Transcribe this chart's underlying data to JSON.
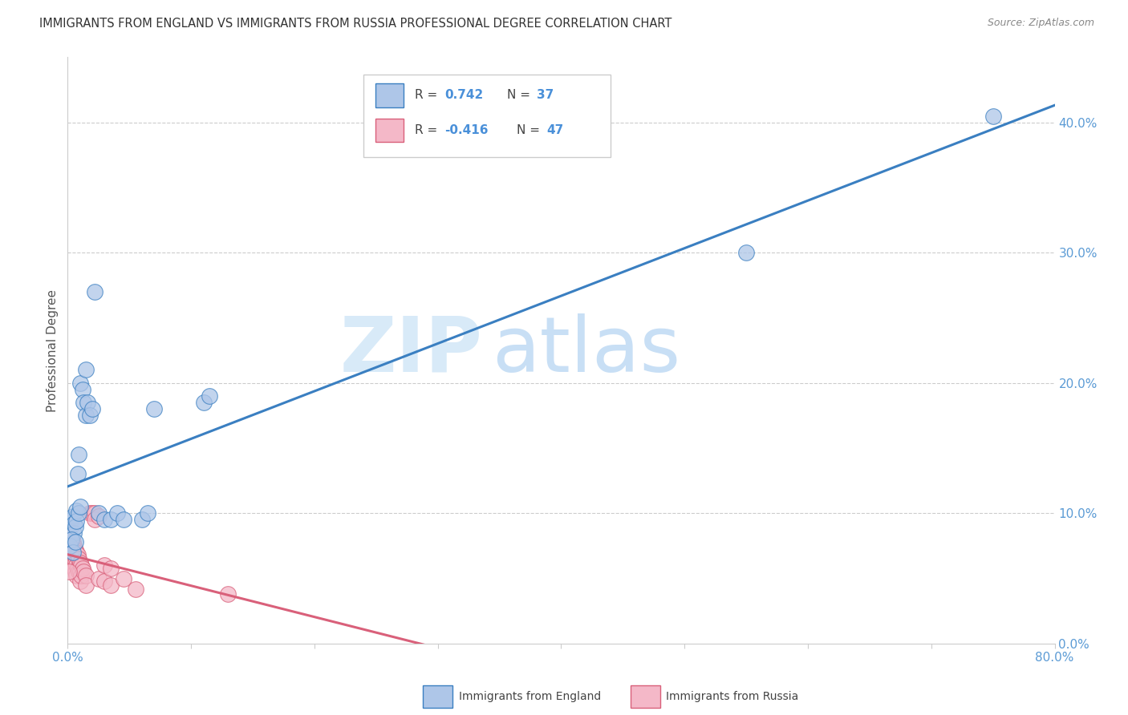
{
  "title": "IMMIGRANTS FROM ENGLAND VS IMMIGRANTS FROM RUSSIA PROFESSIONAL DEGREE CORRELATION CHART",
  "source": "Source: ZipAtlas.com",
  "ylabel": "Professional Degree",
  "legend_england": "Immigrants from England",
  "legend_russia": "Immigrants from Russia",
  "R_england": 0.742,
  "N_england": 37,
  "R_russia": -0.416,
  "N_russia": 47,
  "england_color": "#aec6e8",
  "russia_color": "#f4b8c8",
  "england_line_color": "#3a7fc1",
  "russia_line_color": "#d9607a",
  "watermark_zip": "ZIP",
  "watermark_atlas": "atlas",
  "xlim": [
    0.0,
    0.8
  ],
  "ylim": [
    0.0,
    0.45
  ],
  "england_points": [
    [
      0.002,
      0.083
    ],
    [
      0.003,
      0.095
    ],
    [
      0.004,
      0.098
    ],
    [
      0.005,
      0.092
    ],
    [
      0.005,
      0.085
    ],
    [
      0.006,
      0.09
    ],
    [
      0.007,
      0.102
    ],
    [
      0.007,
      0.094
    ],
    [
      0.008,
      0.13
    ],
    [
      0.009,
      0.145
    ],
    [
      0.009,
      0.1
    ],
    [
      0.01,
      0.105
    ],
    [
      0.01,
      0.2
    ],
    [
      0.012,
      0.195
    ],
    [
      0.013,
      0.185
    ],
    [
      0.015,
      0.175
    ],
    [
      0.015,
      0.21
    ],
    [
      0.016,
      0.185
    ],
    [
      0.018,
      0.175
    ],
    [
      0.02,
      0.18
    ],
    [
      0.022,
      0.27
    ],
    [
      0.025,
      0.1
    ],
    [
      0.03,
      0.095
    ],
    [
      0.035,
      0.095
    ],
    [
      0.04,
      0.1
    ],
    [
      0.045,
      0.095
    ],
    [
      0.06,
      0.095
    ],
    [
      0.065,
      0.1
    ],
    [
      0.07,
      0.18
    ],
    [
      0.11,
      0.185
    ],
    [
      0.115,
      0.19
    ],
    [
      0.55,
      0.3
    ],
    [
      0.75,
      0.405
    ],
    [
      0.002,
      0.075
    ],
    [
      0.003,
      0.08
    ],
    [
      0.004,
      0.07
    ],
    [
      0.006,
      0.078
    ]
  ],
  "russia_points": [
    [
      0.001,
      0.082
    ],
    [
      0.002,
      0.078
    ],
    [
      0.002,
      0.072
    ],
    [
      0.002,
      0.068
    ],
    [
      0.003,
      0.08
    ],
    [
      0.003,
      0.075
    ],
    [
      0.003,
      0.065
    ],
    [
      0.003,
      0.06
    ],
    [
      0.004,
      0.078
    ],
    [
      0.004,
      0.072
    ],
    [
      0.004,
      0.065
    ],
    [
      0.005,
      0.075
    ],
    [
      0.005,
      0.068
    ],
    [
      0.005,
      0.058
    ],
    [
      0.006,
      0.072
    ],
    [
      0.006,
      0.062
    ],
    [
      0.006,
      0.055
    ],
    [
      0.007,
      0.07
    ],
    [
      0.007,
      0.06
    ],
    [
      0.007,
      0.052
    ],
    [
      0.008,
      0.068
    ],
    [
      0.008,
      0.058
    ],
    [
      0.009,
      0.065
    ],
    [
      0.009,
      0.055
    ],
    [
      0.01,
      0.062
    ],
    [
      0.01,
      0.055
    ],
    [
      0.01,
      0.048
    ],
    [
      0.011,
      0.06
    ],
    [
      0.011,
      0.052
    ],
    [
      0.012,
      0.058
    ],
    [
      0.013,
      0.055
    ],
    [
      0.015,
      0.052
    ],
    [
      0.015,
      0.045
    ],
    [
      0.018,
      0.1
    ],
    [
      0.02,
      0.1
    ],
    [
      0.022,
      0.1
    ],
    [
      0.022,
      0.095
    ],
    [
      0.025,
      0.098
    ],
    [
      0.025,
      0.05
    ],
    [
      0.03,
      0.06
    ],
    [
      0.03,
      0.048
    ],
    [
      0.035,
      0.058
    ],
    [
      0.035,
      0.045
    ],
    [
      0.045,
      0.05
    ],
    [
      0.055,
      0.042
    ],
    [
      0.13,
      0.038
    ],
    [
      0.001,
      0.055
    ]
  ],
  "yticks": [
    0.0,
    0.1,
    0.2,
    0.3,
    0.4
  ],
  "ytick_labels": [
    "0.0%",
    "10.0%",
    "20.0%",
    "30.0%",
    "40.0%"
  ],
  "xtick_left_label": "0.0%",
  "xtick_right_label": "80.0%"
}
